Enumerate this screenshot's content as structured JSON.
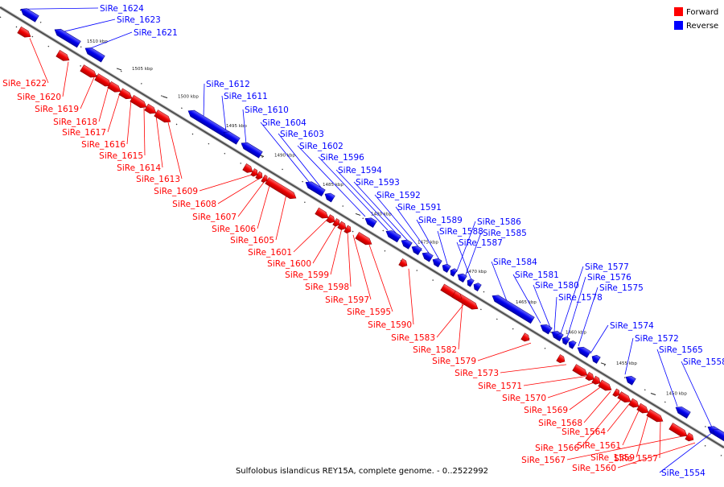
{
  "caption": "Sulfolobus islandicus REY15A, complete genome. - 0..2522992",
  "legend": [
    {
      "label": "Forward",
      "color": "#ff0000"
    },
    {
      "label": "Reverse",
      "color": "#0000ff"
    }
  ],
  "ticks": [
    "1510 kbp",
    "1505 kbp",
    "1500 kbp",
    "1495 kbp",
    "1490 kbp",
    "1485 kbp",
    "1480 kbp",
    "1475 kbp",
    "1470 kbp",
    "1465 kbp",
    "1460 kbp",
    "1455 kbp",
    "1450 kbp"
  ],
  "reverse_genes": [
    "SiRe_1624",
    "SiRe_1623",
    "SiRe_1621",
    "SiRe_1612",
    "SiRe_1611",
    "SiRe_1610",
    "SiRe_1604",
    "SiRe_1603",
    "SiRe_1602",
    "SiRe_1596",
    "SiRe_1594",
    "SiRe_1593",
    "SiRe_1592",
    "SiRe_1591",
    "SiRe_1589",
    "SiRe_1588",
    "SiRe_1586",
    "SiRe_1585",
    "SiRe_1587",
    "SiRe_1584",
    "SiRe_1581",
    "SiRe_1580",
    "SiRe_1577",
    "SiRe_1576",
    "SiRe_1575",
    "SiRe_1578",
    "SiRe_1574",
    "SiRe_1572",
    "SiRe_1565",
    "SiRe_1558",
    "SiRe_1554"
  ],
  "forward_genes": [
    "SiRe_1622",
    "SiRe_1620",
    "SiRe_1619",
    "SiRe_1618",
    "SiRe_1617",
    "SiRe_1616",
    "SiRe_1615",
    "SiRe_1614",
    "SiRe_1613",
    "SiRe_1609",
    "SiRe_1608",
    "SiRe_1607",
    "SiRe_1606",
    "SiRe_1605",
    "SiRe_1601",
    "SiRe_1600",
    "SiRe_1599",
    "SiRe_1598",
    "SiRe_1597",
    "SiRe_1595",
    "SiRe_1590",
    "SiRe_1583",
    "SiRe_1582",
    "SiRe_1579",
    "SiRe_1573",
    "SiRe_1571",
    "SiRe_1570",
    "SiRe_1569",
    "SiRe_1568",
    "SiRe_1564",
    "SiRe_1561",
    "SiRe_1566",
    "SiRe_1559",
    "SiRe_1557",
    "SiRe_1567",
    "SiRe_1560"
  ]
}
